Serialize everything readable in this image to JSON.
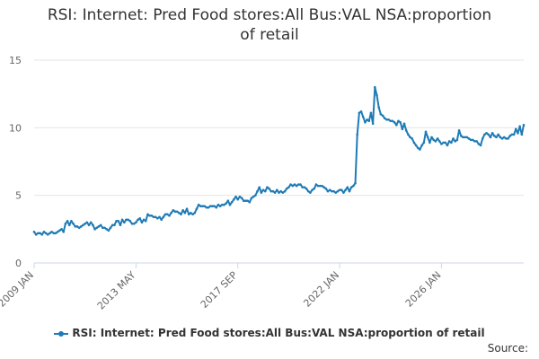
{
  "title_line1": "RSI: Internet: Pred Food stores:All Bus:VAL NSA:proportion",
  "title_line2": "of retail",
  "legend_label": "RSI: Internet: Pred Food stores:All Bus:VAL NSA:proportion of retail",
  "source_label": "Source:",
  "colors": {
    "series": "#1f7bb6",
    "grid": "#e6e6e6",
    "axis": "#ccd6eb",
    "label": "#666666"
  },
  "chart_data": {
    "type": "line",
    "title": "RSI: Internet: Pred Food stores:All Bus:VAL NSA:proportion of retail",
    "xlabel": "",
    "ylabel": "",
    "x_tick_labels": [
      "2009 JAN",
      "2013 MAY",
      "2017 SEP",
      "2022 JAN",
      "2026 JAN"
    ],
    "y_tick_labels": [
      "0",
      "5",
      "10",
      "15"
    ],
    "ylim": [
      0,
      15
    ],
    "series": [
      {
        "name": "RSI: Internet: Pred Food stores:All Bus:VAL NSA:proportion of retail",
        "start": "2009 JAN",
        "frequency": "monthly",
        "values": [
          2.3,
          2.1,
          2.2,
          2.2,
          2.1,
          2.3,
          2.2,
          2.1,
          2.2,
          2.3,
          2.2,
          2.2,
          2.3,
          2.4,
          2.5,
          2.3,
          2.9,
          3.1,
          2.8,
          3.1,
          2.9,
          2.7,
          2.7,
          2.6,
          2.7,
          2.8,
          2.9,
          3.0,
          2.8,
          3.0,
          2.8,
          2.5,
          2.6,
          2.7,
          2.8,
          2.6,
          2.6,
          2.5,
          2.4,
          2.6,
          2.8,
          2.8,
          3.1,
          3.1,
          2.8,
          3.2,
          3.0,
          3.2,
          3.2,
          3.1,
          2.9,
          2.9,
          3.0,
          3.2,
          3.3,
          3.0,
          3.2,
          3.1,
          3.6,
          3.5,
          3.5,
          3.4,
          3.4,
          3.3,
          3.4,
          3.2,
          3.4,
          3.6,
          3.6,
          3.5,
          3.7,
          3.9,
          3.8,
          3.8,
          3.7,
          3.6,
          3.9,
          3.7,
          4.0,
          3.6,
          3.7,
          3.6,
          3.7,
          4.0,
          4.3,
          4.2,
          4.2,
          4.2,
          4.1,
          4.1,
          4.2,
          4.2,
          4.2,
          4.1,
          4.3,
          4.2,
          4.3,
          4.3,
          4.4,
          4.6,
          4.3,
          4.5,
          4.7,
          4.9,
          4.7,
          4.9,
          4.8,
          4.6,
          4.6,
          4.6,
          4.5,
          4.8,
          4.9,
          5.0,
          5.3,
          5.6,
          5.2,
          5.4,
          5.3,
          5.6,
          5.5,
          5.3,
          5.3,
          5.2,
          5.4,
          5.2,
          5.3,
          5.2,
          5.3,
          5.5,
          5.6,
          5.8,
          5.7,
          5.8,
          5.7,
          5.8,
          5.8,
          5.6,
          5.6,
          5.5,
          5.3,
          5.2,
          5.4,
          5.5,
          5.8,
          5.7,
          5.7,
          5.7,
          5.6,
          5.5,
          5.3,
          5.4,
          5.3,
          5.3,
          5.2,
          5.3,
          5.4,
          5.4,
          5.2,
          5.4,
          5.6,
          5.3,
          5.6,
          5.7,
          5.9,
          9.5,
          11.1,
          11.2,
          10.8,
          10.4,
          10.6,
          10.5,
          11.1,
          10.3,
          13.0,
          12.4,
          11.5,
          11.0,
          10.9,
          10.7,
          10.6,
          10.6,
          10.5,
          10.5,
          10.4,
          10.2,
          10.5,
          10.4,
          9.9,
          10.3,
          9.8,
          9.5,
          9.3,
          9.2,
          8.9,
          8.7,
          8.5,
          8.4,
          8.7,
          8.9,
          9.7,
          9.3,
          8.9,
          9.3,
          9.1,
          9.0,
          9.2,
          9.0,
          8.8,
          8.9,
          8.9,
          8.7,
          9.0,
          8.9,
          9.2,
          9.0,
          9.1,
          9.8,
          9.4,
          9.3,
          9.3,
          9.3,
          9.2,
          9.1,
          9.1,
          9.0,
          9.0,
          8.8,
          8.7,
          9.2,
          9.5,
          9.6,
          9.5,
          9.3,
          9.6,
          9.4,
          9.3,
          9.5,
          9.3,
          9.2,
          9.3,
          9.2,
          9.2,
          9.4,
          9.5,
          9.5,
          9.9,
          9.6,
          10.1,
          9.5,
          10.2
        ]
      }
    ]
  }
}
